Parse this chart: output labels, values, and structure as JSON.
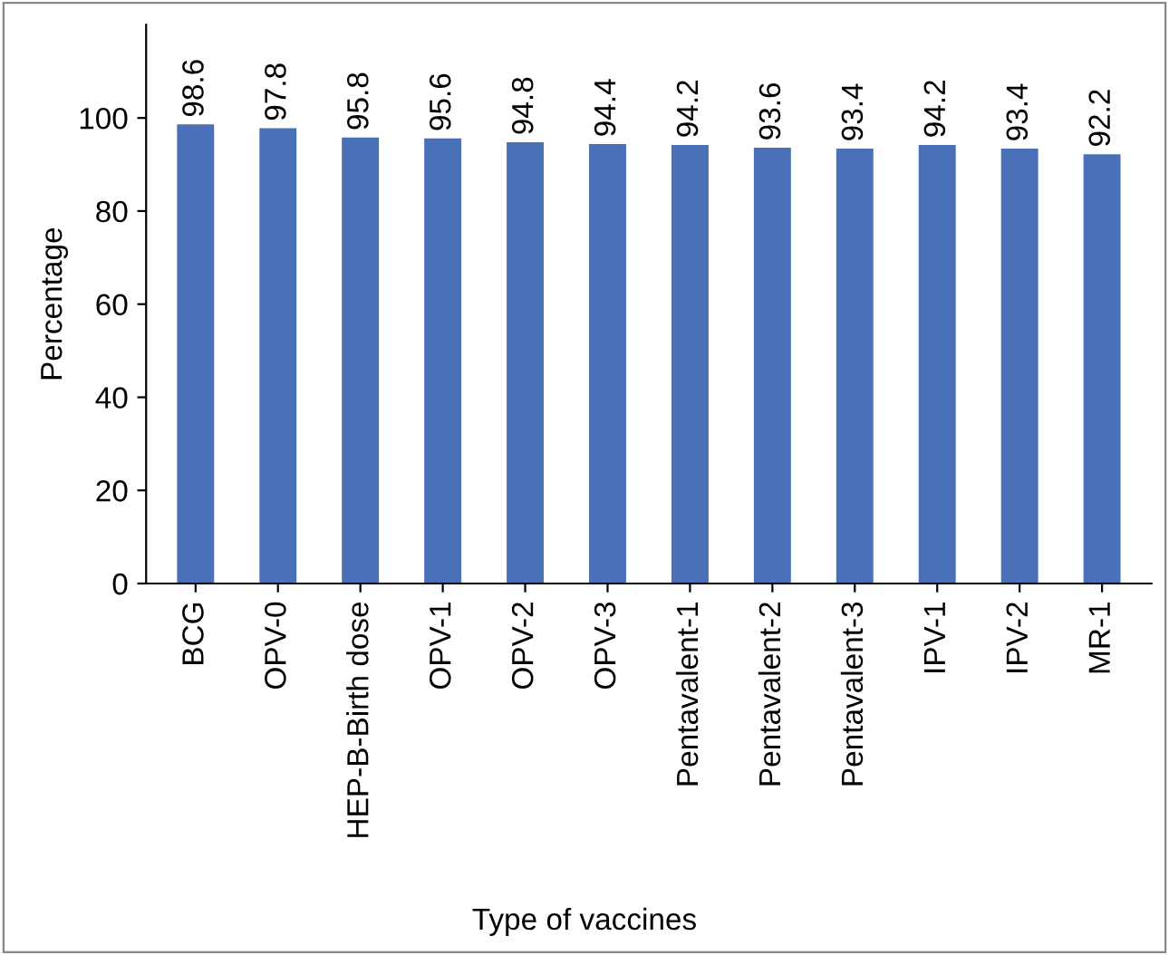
{
  "chart_data": {
    "type": "bar",
    "xlabel": "Type of vaccines",
    "ylabel": "Percentage",
    "categories": [
      "BCG",
      "OPV-0",
      "HEP-B-Birth dose",
      "OPV-1",
      "OPV-2",
      "OPV-3",
      "Pentavalent-1",
      "Pentavalent-2",
      "Pentavalent-3",
      "IPV-1",
      "IPV-2",
      "MR-1"
    ],
    "values": [
      98.6,
      97.8,
      95.8,
      95.6,
      94.8,
      94.4,
      94.2,
      93.6,
      93.4,
      94.2,
      93.4,
      92.2
    ],
    "color": "#4a70b8",
    "ylim": [
      0,
      120
    ],
    "yticks": [
      0,
      20,
      40,
      60,
      80,
      100
    ],
    "grid": false,
    "data_labels": true
  }
}
